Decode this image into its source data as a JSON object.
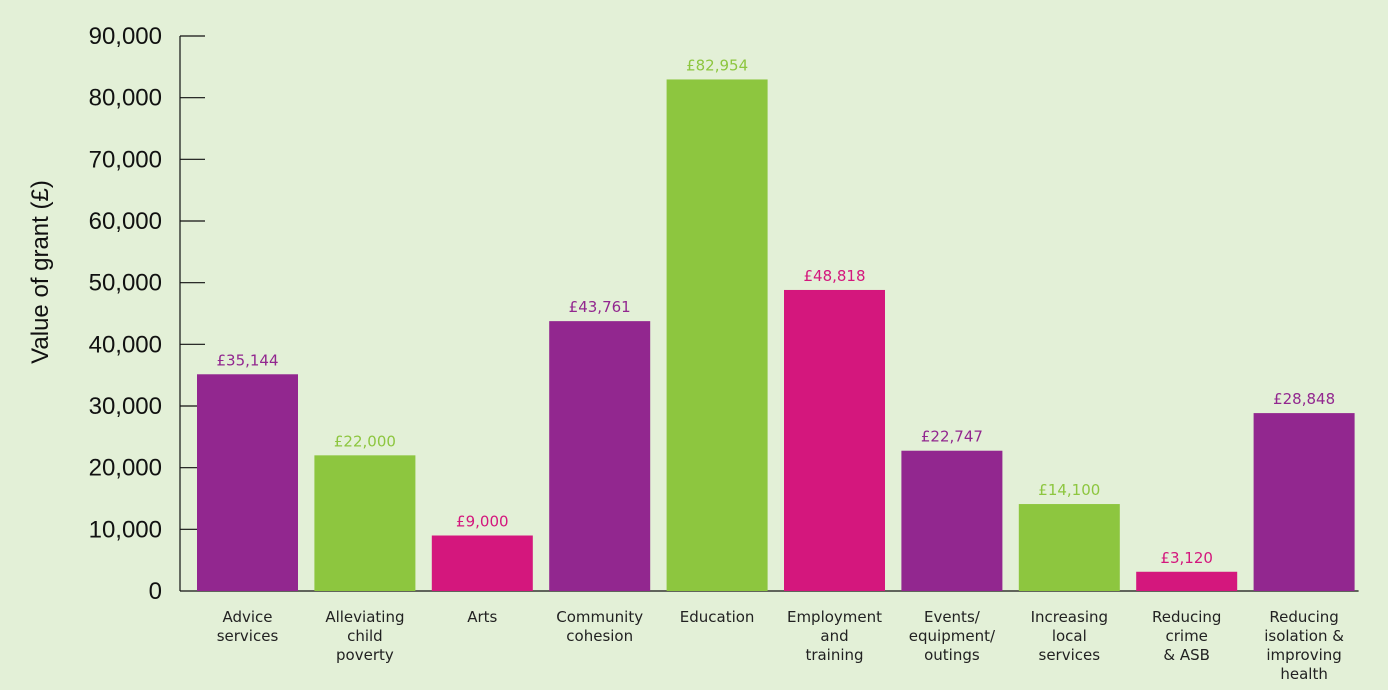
{
  "chart_data": {
    "type": "bar",
    "title": "",
    "xlabel": "",
    "ylabel": "Value of grant (£)",
    "ylim": [
      0,
      90000
    ],
    "yticks": [
      0,
      10000,
      20000,
      30000,
      40000,
      50000,
      60000,
      70000,
      80000,
      90000
    ],
    "ytick_labels": [
      "0",
      "10,000",
      "20,000",
      "30,000",
      "40,000",
      "50,000",
      "60,000",
      "70,000",
      "80,000",
      "90,000"
    ],
    "grid": false,
    "legend": "none",
    "categories": [
      "Advice services",
      "Alleviating child poverty",
      "Arts",
      "Community cohesion",
      "Education",
      "Employment and training",
      "Events/ equipment/ outings",
      "Increasing local services",
      "Reducing crime & ASB",
      "Reducing isolation & improving health"
    ],
    "category_label_lines": [
      [
        "Advice",
        "services"
      ],
      [
        "Alleviating",
        "child",
        "poverty"
      ],
      [
        "Arts"
      ],
      [
        "Community",
        "cohesion"
      ],
      [
        "Education"
      ],
      [
        "Employment",
        "and",
        "training"
      ],
      [
        "Events/",
        "equipment/",
        "outings"
      ],
      [
        "Increasing",
        "local",
        "services"
      ],
      [
        "Reducing",
        "crime",
        "& ASB"
      ],
      [
        "Reducing",
        "isolation &",
        "improving",
        "health"
      ]
    ],
    "values": [
      35144,
      22000,
      9000,
      43761,
      82954,
      48818,
      22747,
      14100,
      3120,
      28848
    ],
    "data_labels": [
      "£35,144",
      "£22,000",
      "£9,000",
      "£43,761",
      "£82,954",
      "£48,818",
      "£22,747",
      "£14,100",
      "£3,120",
      "£28,848"
    ],
    "colors": [
      "#92278f",
      "#8dc63f",
      "#d4177d",
      "#92278f",
      "#8dc63f",
      "#d4177d",
      "#92278f",
      "#8dc63f",
      "#d4177d",
      "#92278f"
    ],
    "label_colors": [
      "#92278f",
      "#8dc63f",
      "#d4177d",
      "#92278f",
      "#8dc63f",
      "#d4177d",
      "#92278f",
      "#8dc63f",
      "#d4177d",
      "#92278f"
    ],
    "background": "#e3f0d7"
  }
}
